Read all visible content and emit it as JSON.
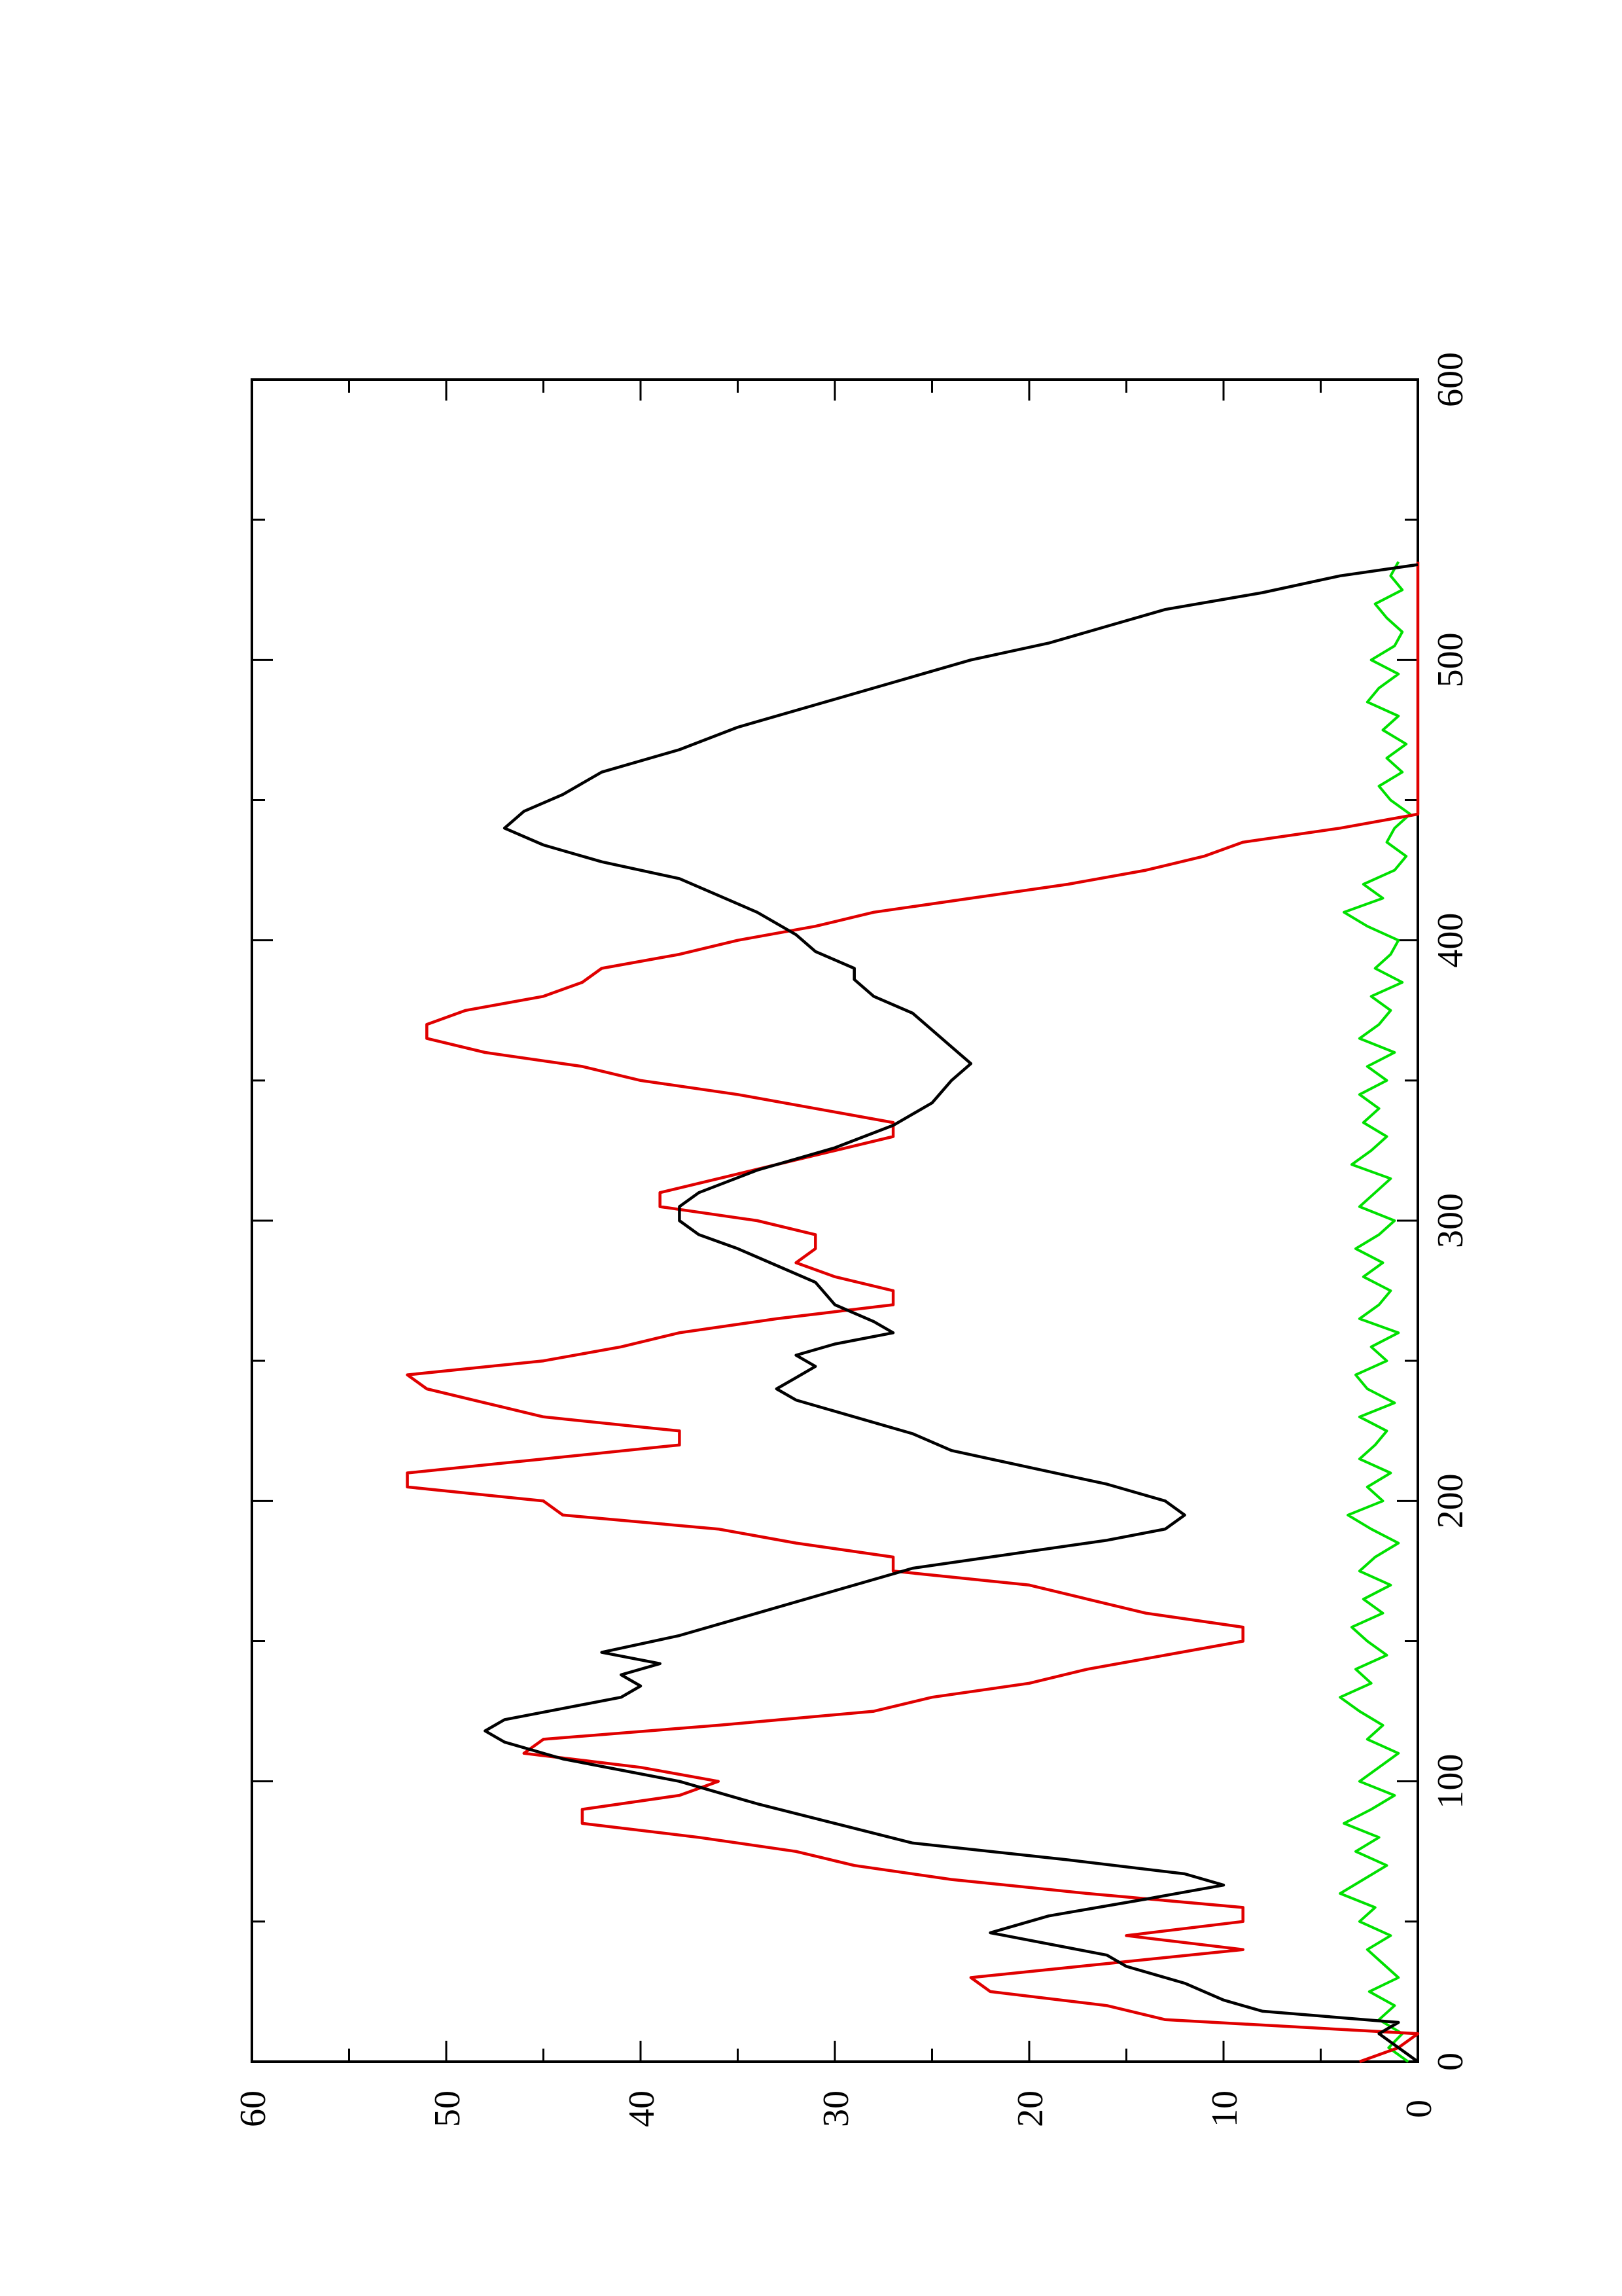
{
  "chart_data": {
    "type": "line",
    "orientation": "rotated-90-ccw",
    "title": "",
    "xlabel": "",
    "ylabel": "",
    "xlim": [
      0,
      600
    ],
    "ylim": [
      0,
      60
    ],
    "x_ticks": [
      0,
      100,
      200,
      300,
      400,
      500,
      600
    ],
    "y_ticks": [
      0,
      10,
      20,
      30,
      40,
      50,
      60
    ],
    "x_tick_labels": [
      "0",
      "100",
      "200",
      "300",
      "400",
      "500",
      "600"
    ],
    "y_tick_labels": [
      "0",
      "10",
      "20",
      "30",
      "40",
      "50",
      "60"
    ],
    "grid": false,
    "legend": "none",
    "colors": {
      "black": "#000000",
      "red": "#e00000",
      "green": "#00e000"
    },
    "series": [
      {
        "color": "black",
        "x": [
          0,
          5,
          10,
          14,
          18,
          22,
          28,
          34,
          38,
          46,
          52,
          58,
          63,
          67,
          72,
          78,
          85,
          92,
          100,
          108,
          114,
          118,
          122,
          126,
          130,
          134,
          138,
          142,
          146,
          152,
          160,
          168,
          176,
          182,
          186,
          190,
          195,
          200,
          206,
          212,
          218,
          224,
          230,
          236,
          240,
          244,
          248,
          252,
          256,
          260,
          264,
          270,
          278,
          284,
          290,
          295,
          300,
          305,
          310,
          318,
          326,
          334,
          342,
          350,
          356,
          362,
          368,
          374,
          380,
          386,
          390,
          396,
          402,
          410,
          416,
          422,
          428,
          434,
          440,
          446,
          452,
          460,
          468,
          476,
          484,
          492,
          500,
          506,
          512,
          518,
          524,
          530,
          534
        ],
        "y": [
          0,
          1,
          2,
          1,
          8,
          10,
          12,
          15,
          16,
          22,
          19,
          14,
          10,
          12,
          18,
          26,
          30,
          34,
          38,
          44,
          47,
          48,
          47,
          44,
          41,
          40,
          41,
          39,
          42,
          38,
          34,
          30,
          26,
          20,
          16,
          13,
          12,
          13,
          16,
          20,
          24,
          26,
          29,
          32,
          33,
          32,
          31,
          32,
          30,
          27,
          28,
          30,
          31,
          33,
          35,
          37,
          38,
          38,
          37,
          34,
          30,
          27,
          25,
          24,
          23,
          24,
          25,
          26,
          28,
          29,
          29,
          31,
          32,
          34,
          36,
          38,
          42,
          45,
          47,
          46,
          44,
          42,
          38,
          35,
          31,
          27,
          23,
          19,
          16,
          13,
          8,
          4,
          0
        ]
      },
      {
        "color": "red",
        "x": [
          0,
          5,
          10,
          15,
          20,
          25,
          30,
          35,
          40,
          45,
          50,
          55,
          60,
          65,
          70,
          75,
          80,
          85,
          90,
          95,
          100,
          105,
          110,
          115,
          120,
          125,
          130,
          135,
          140,
          145,
          150,
          155,
          160,
          165,
          170,
          175,
          180,
          185,
          190,
          195,
          200,
          205,
          210,
          215,
          220,
          225,
          230,
          235,
          240,
          245,
          250,
          255,
          260,
          265,
          270,
          275,
          280,
          285,
          290,
          295,
          300,
          305,
          310,
          315,
          320,
          325,
          330,
          335,
          340,
          345,
          350,
          355,
          360,
          365,
          370,
          375,
          380,
          385,
          390,
          395,
          400,
          405,
          410,
          415,
          420,
          425,
          430,
          435,
          440,
          445,
          450,
          455,
          460,
          465,
          470,
          475,
          480,
          485,
          490,
          495,
          500,
          505,
          510,
          515,
          520,
          525,
          530,
          535
        ],
        "y": [
          3,
          1,
          0,
          13,
          16,
          22,
          23,
          16,
          9,
          15,
          9,
          9,
          17,
          24,
          29,
          32,
          37,
          43,
          43,
          38,
          36,
          40,
          46,
          45,
          36,
          28,
          25,
          20,
          17,
          13,
          9,
          9,
          14,
          17,
          20,
          27,
          27,
          32,
          36,
          44,
          45,
          52,
          52,
          45,
          38,
          38,
          45,
          48,
          51,
          52,
          45,
          41,
          38,
          33,
          27,
          27,
          30,
          32,
          31,
          31,
          34,
          39,
          39,
          36,
          33,
          30,
          27,
          27,
          31,
          35,
          40,
          43,
          48,
          51,
          51,
          49,
          45,
          43,
          42,
          38,
          35,
          31,
          28,
          23,
          18,
          14,
          11,
          9,
          4,
          0,
          0,
          0,
          0,
          0,
          0,
          0,
          0,
          0,
          0,
          0,
          0,
          0,
          0,
          0,
          0,
          0,
          0,
          0
        ]
      },
      {
        "color": "green",
        "x": [
          0,
          5,
          10,
          15,
          20,
          25,
          30,
          35,
          40,
          45,
          50,
          55,
          60,
          65,
          70,
          75,
          80,
          85,
          90,
          95,
          100,
          105,
          110,
          115,
          120,
          125,
          130,
          135,
          140,
          145,
          150,
          155,
          160,
          165,
          170,
          175,
          180,
          185,
          190,
          195,
          200,
          205,
          210,
          215,
          220,
          225,
          230,
          235,
          240,
          245,
          250,
          255,
          260,
          265,
          270,
          275,
          280,
          285,
          290,
          295,
          300,
          305,
          310,
          315,
          320,
          325,
          330,
          335,
          340,
          345,
          350,
          355,
          360,
          365,
          370,
          375,
          380,
          385,
          390,
          395,
          400,
          405,
          410,
          415,
          420,
          425,
          430,
          435,
          440,
          445,
          450,
          455,
          460,
          465,
          470,
          475,
          480,
          485,
          490,
          495,
          500,
          505,
          510,
          515,
          520,
          525,
          530,
          535
        ],
        "y": [
          0.5,
          1.5,
          0.8,
          2.0,
          1.2,
          2.5,
          1.0,
          1.8,
          2.6,
          1.4,
          3.0,
          2.2,
          4.0,
          2.8,
          1.6,
          3.2,
          2.0,
          3.8,
          2.4,
          1.2,
          3.0,
          2.0,
          1.0,
          2.6,
          1.8,
          3.0,
          4.0,
          2.4,
          3.2,
          1.6,
          2.6,
          3.4,
          1.8,
          2.8,
          1.4,
          3.0,
          2.2,
          1.0,
          2.4,
          3.6,
          1.8,
          2.6,
          1.4,
          3.0,
          2.2,
          1.6,
          3.0,
          1.2,
          2.6,
          3.2,
          1.6,
          2.4,
          1.0,
          3.0,
          2.0,
          1.4,
          2.8,
          1.8,
          3.2,
          2.0,
          1.2,
          3.0,
          2.2,
          1.4,
          3.4,
          2.4,
          1.6,
          2.8,
          2.0,
          3.0,
          1.6,
          2.6,
          1.2,
          3.0,
          2.0,
          1.4,
          2.4,
          0.8,
          2.2,
          1.4,
          1.0,
          2.6,
          3.8,
          1.8,
          2.8,
          1.2,
          0.6,
          1.6,
          1.2,
          0.4,
          1.4,
          2.0,
          0.8,
          1.6,
          0.6,
          1.8,
          1.0,
          2.6,
          2.0,
          1.0,
          2.4,
          1.2,
          0.8,
          1.6,
          2.2,
          0.8,
          1.4,
          1.0
        ]
      }
    ]
  }
}
